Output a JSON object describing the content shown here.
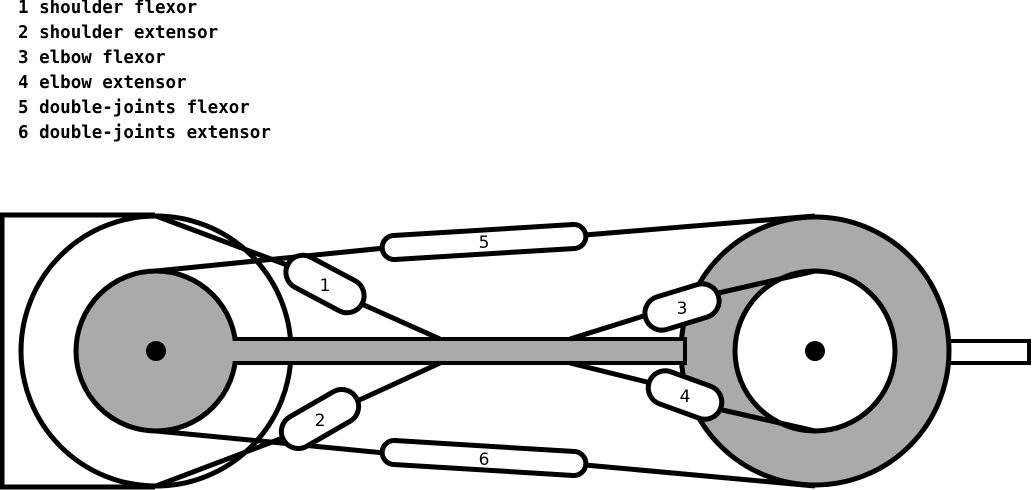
{
  "legend": [
    {
      "num": "1",
      "text": "shoulder flexor"
    },
    {
      "num": "2",
      "text": "shoulder extensor"
    },
    {
      "num": "3",
      "text": "elbow flexor"
    },
    {
      "num": "4",
      "text": "elbow extensor"
    },
    {
      "num": "5",
      "text": "double-joints flexor"
    },
    {
      "num": "6",
      "text": "double-joints extensor"
    }
  ],
  "muscle_labels": {
    "m1": "1",
    "m2": "2",
    "m3": "3",
    "m4": "4",
    "m5": "5",
    "m6": "6"
  },
  "colors": {
    "stroke": "#000000",
    "fill_gray": "#aaaaaa",
    "fill_white": "#ffffff"
  }
}
